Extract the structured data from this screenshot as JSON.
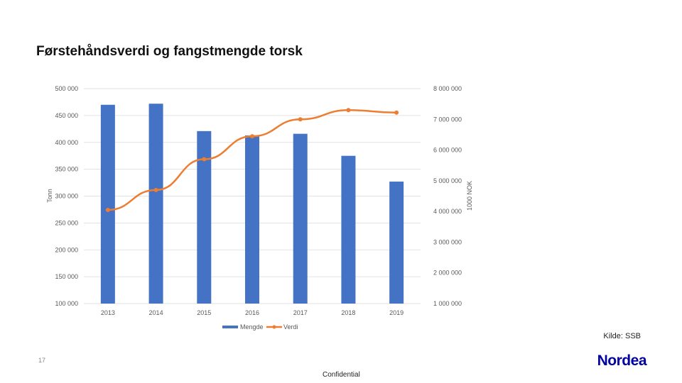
{
  "title": "Førstehåndsverdi og fangstmengde torsk",
  "source": "Kilde: SSB",
  "page_number": "17",
  "confidential": "Confidential",
  "logo": "Nordea",
  "colors": {
    "bar": "#4472c4",
    "line": "#ed7d31"
  },
  "chart_data": {
    "type": "bar",
    "categories": [
      "2013",
      "2014",
      "2015",
      "2016",
      "2017",
      "2018",
      "2019"
    ],
    "series": [
      {
        "name": "Mengde",
        "type": "bar",
        "axis": "left",
        "values": [
          470000,
          472000,
          421000,
          413000,
          416000,
          375000,
          327000
        ]
      },
      {
        "name": "Verdi",
        "type": "line",
        "axis": "right",
        "values": [
          4050000,
          4700000,
          5700000,
          6450000,
          7000000,
          7300000,
          7220000
        ]
      }
    ],
    "ylabel": "Tonn",
    "ylim": [
      100000,
      500000
    ],
    "yticks": [
      "500 000",
      "450 000",
      "400 000",
      "350 000",
      "300 000",
      "250 000",
      "200 000",
      "150 000",
      "100 000"
    ],
    "y2label": "1000 NOK",
    "y2lim": [
      1000000,
      8000000
    ],
    "y2ticks": [
      "8 000 000",
      "7 000 000",
      "6 000 000",
      "5 000 000",
      "4 000 000",
      "3 000 000",
      "2 000 000",
      "1 000 000"
    ],
    "grid": true,
    "legend": "bottom"
  }
}
